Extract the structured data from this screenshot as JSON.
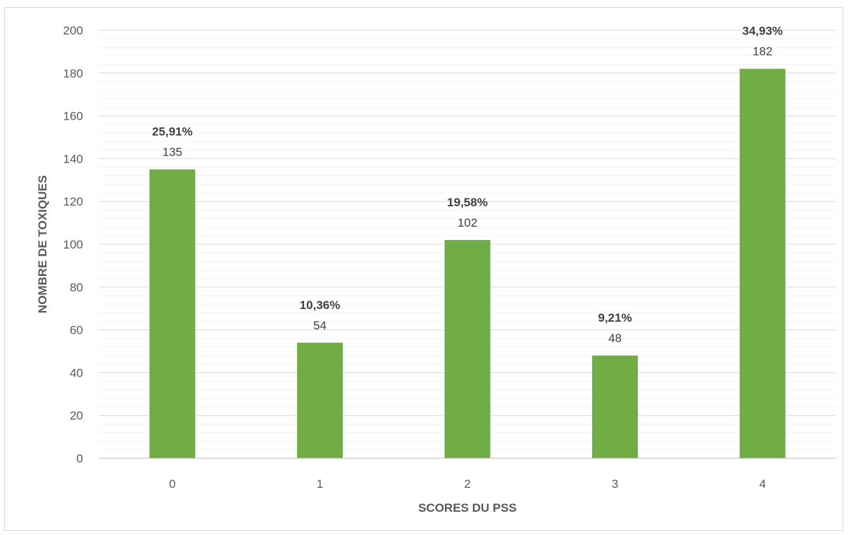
{
  "chart_data": {
    "type": "bar",
    "categories": [
      "0",
      "1",
      "2",
      "3",
      "4"
    ],
    "values": [
      135,
      54,
      102,
      48,
      182
    ],
    "percent_labels": [
      "25,91%",
      "10,36%",
      "19,58%",
      "9,21%",
      "34,93%"
    ],
    "value_labels": [
      "135",
      "54",
      "102",
      "48",
      "182"
    ],
    "xlabel": "SCORES DU PSS",
    "ylabel": "NOMBRE DE TOXIQUES",
    "ylim": [
      0,
      200
    ],
    "y_major_ticks": [
      0,
      20,
      40,
      60,
      80,
      100,
      120,
      140,
      160,
      180,
      200
    ],
    "y_minor_step": 4,
    "grid": true,
    "legend": "none",
    "colors": {
      "bar": "#70ad47",
      "major_grid": "#d9d9d9",
      "minor_grid": "#f2f2f2",
      "axis_line": "#bfbfbf"
    }
  }
}
